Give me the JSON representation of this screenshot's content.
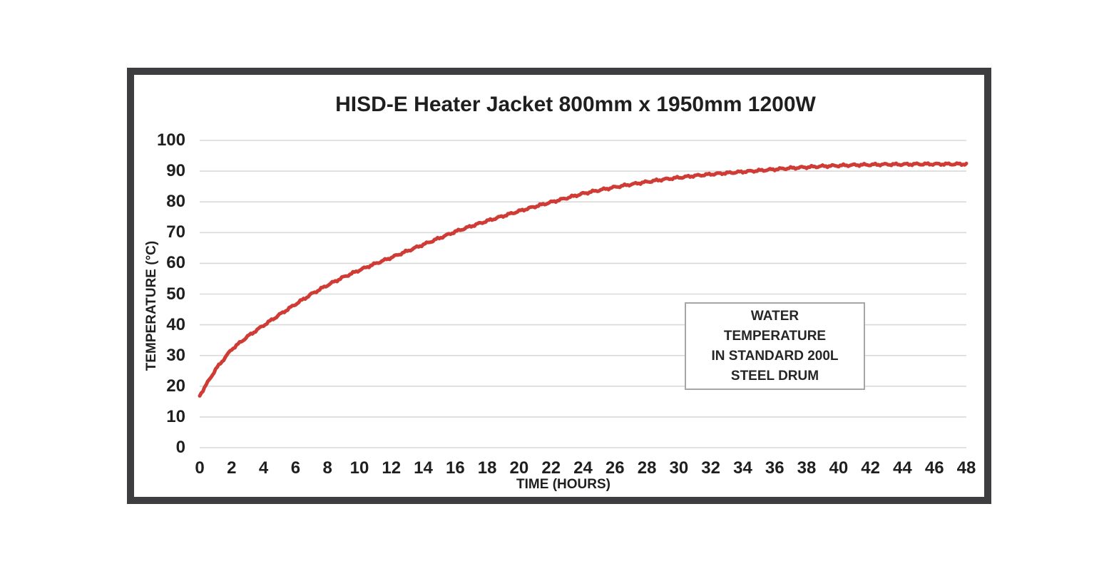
{
  "chart": {
    "title": "HISD-E Heater Jacket 800mm x 1950mm 1200W",
    "x_axis_title": "TIME (HOURS)",
    "y_axis_title": "TEMPERATURE (°C)",
    "annotation": {
      "lines": [
        "WATER",
        "TEMPERATURE",
        "IN STANDARD 200L",
        "STEEL DRUM"
      ]
    },
    "colors": {
      "line": "#cf3b35",
      "gridline": "#d9d9d9",
      "text": "#1f1f1f",
      "frame": "#3e3e40",
      "annotation_border": "#a6a6a6"
    }
  },
  "chart_data": {
    "type": "line",
    "title": "HISD-E Heater Jacket 800mm x 1950mm 1200W",
    "xlabel": "TIME (HOURS)",
    "ylabel": "TEMPERATURE (°C)",
    "xlim": [
      0,
      48
    ],
    "ylim": [
      0,
      100
    ],
    "x_ticks": [
      0,
      2,
      4,
      6,
      8,
      10,
      12,
      14,
      16,
      18,
      20,
      22,
      24,
      26,
      28,
      30,
      32,
      34,
      36,
      38,
      40,
      42,
      44,
      46,
      48
    ],
    "y_ticks": [
      0,
      10,
      20,
      30,
      40,
      50,
      60,
      70,
      80,
      90,
      100
    ],
    "grid": "horizontal",
    "legend": "none",
    "annotation": "WATER TEMPERATURE IN STANDARD 200L STEEL DRUM",
    "series": [
      {
        "name": "Water temperature in standard 200L steel drum (°C)",
        "color": "#cf3b35",
        "x": [
          0,
          1,
          2,
          3,
          4,
          5,
          6,
          7,
          8,
          9,
          10,
          11,
          12,
          13,
          14,
          15,
          16,
          17,
          18,
          19,
          20,
          21,
          22,
          23,
          24,
          25,
          26,
          27,
          28,
          29,
          30,
          31,
          32,
          33,
          34,
          35,
          36,
          37,
          38,
          39,
          40,
          41,
          42,
          43,
          44,
          45,
          46,
          47,
          48
        ],
        "y": [
          17.0,
          25.5,
          32.0,
          36.2,
          39.8,
          43.3,
          46.7,
          50.0,
          52.9,
          55.5,
          57.8,
          59.9,
          61.9,
          64.0,
          66.1,
          68.2,
          70.3,
          72.1,
          73.8,
          75.4,
          77.0,
          78.5,
          79.9,
          81.3,
          82.7,
          83.8,
          84.8,
          85.7,
          86.5,
          87.3,
          87.9,
          88.5,
          89.0,
          89.4,
          89.8,
          90.2,
          90.6,
          91.0,
          91.3,
          91.6,
          91.8,
          92.0,
          92.1,
          92.2,
          92.2,
          92.3,
          92.3,
          92.3,
          92.3
        ]
      }
    ]
  }
}
